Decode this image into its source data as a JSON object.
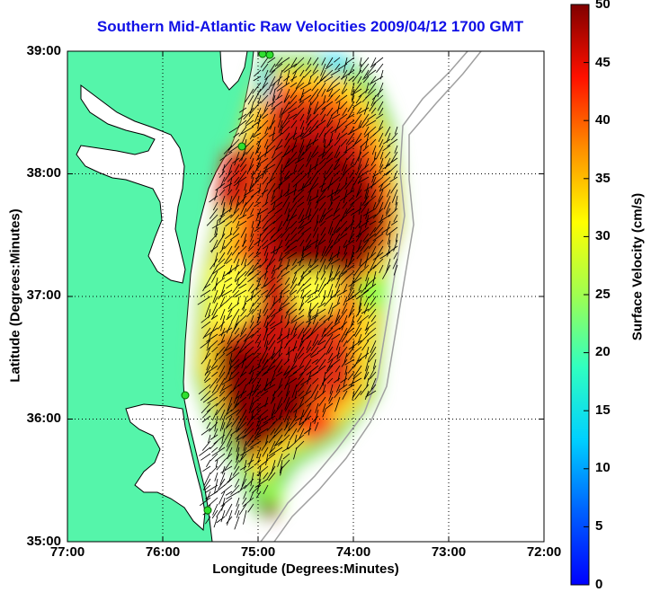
{
  "title": "Southern Mid-Atlantic Raw Velocities 2009/04/12 1700 GMT",
  "axes": {
    "xlabel": "Longitude (Degrees:Minutes)",
    "ylabel": "Latitude (Degrees:Minutes)",
    "xticks": [
      "77:00",
      "76:00",
      "75:00",
      "74:00",
      "73:00",
      "72:00"
    ],
    "yticks": [
      "39:00",
      "38:00",
      "37:00",
      "36:00",
      "35:00"
    ],
    "xlim": [
      -77,
      -72
    ],
    "ylim": [
      35,
      39
    ],
    "grid": "dotted"
  },
  "colorbar": {
    "label": "Surface Velocity (cm/s)",
    "ticks": [
      "0",
      "5",
      "10",
      "15",
      "20",
      "25",
      "30",
      "35",
      "40",
      "45",
      "50"
    ],
    "range": [
      0,
      50
    ],
    "colormap": "jet"
  },
  "colors": {
    "title": "#1010e6",
    "land": "#55f5aa",
    "coastline": "#000000",
    "bathymetry": "#a0a0a0",
    "arrows": "#000000"
  },
  "map": {
    "land_label": "",
    "stations": [
      "station",
      "station",
      "station",
      "station",
      "station"
    ]
  }
}
